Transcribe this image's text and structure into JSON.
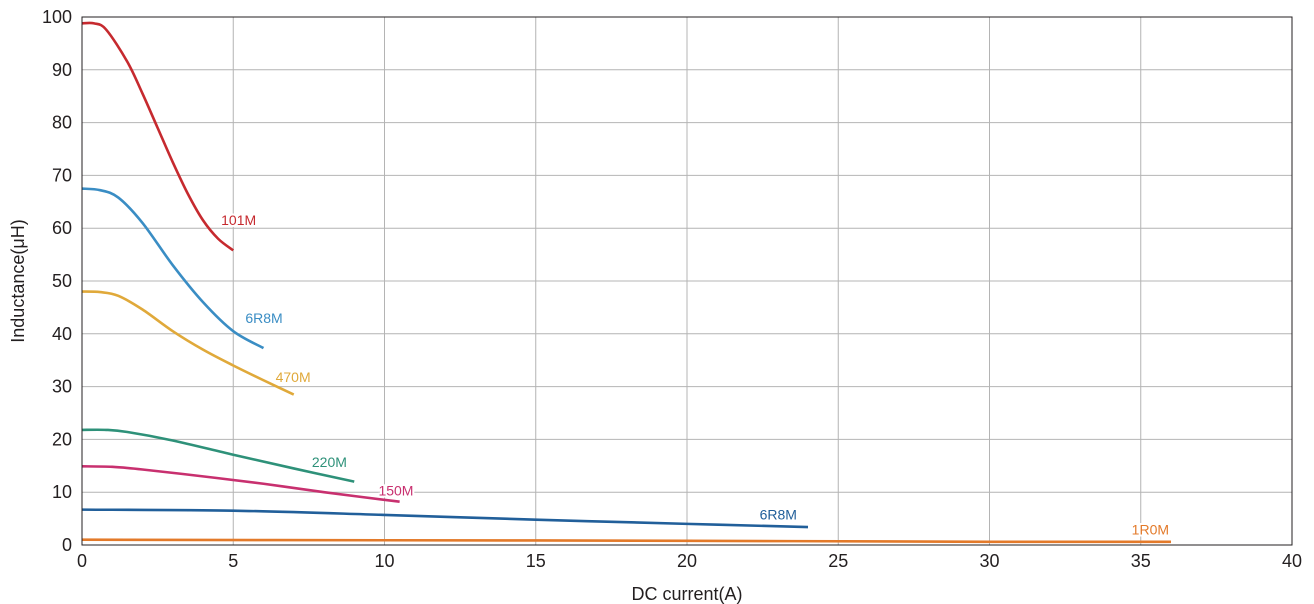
{
  "chart_data": {
    "type": "line",
    "xlabel": "DC current(A)",
    "ylabel": "Inductance(μH)",
    "xlim": [
      0,
      40
    ],
    "ylim": [
      0,
      100
    ],
    "x_ticks": [
      0,
      5,
      10,
      15,
      20,
      25,
      30,
      35,
      40
    ],
    "y_ticks": [
      0,
      10,
      20,
      30,
      40,
      50,
      60,
      70,
      80,
      90,
      100
    ],
    "grid": true,
    "legend": "inline labels",
    "series": [
      {
        "name": "101M",
        "color": "#c62a2f",
        "points": [
          [
            0,
            98.8
          ],
          [
            0.4,
            98.8
          ],
          [
            0.8,
            97.6
          ],
          [
            1.5,
            91.5
          ],
          [
            2,
            85.5
          ],
          [
            2.5,
            79
          ],
          [
            3,
            72.5
          ],
          [
            3.5,
            66.5
          ],
          [
            4,
            61.5
          ],
          [
            4.5,
            58
          ],
          [
            5,
            55.8
          ]
        ]
      },
      {
        "name": "6R8M",
        "color": "#3a8dc4",
        "points": [
          [
            0,
            67.5
          ],
          [
            0.6,
            67.2
          ],
          [
            1.2,
            65.8
          ],
          [
            2,
            61
          ],
          [
            3,
            53
          ],
          [
            4,
            46
          ],
          [
            5,
            40.5
          ],
          [
            6,
            37.3
          ]
        ]
      },
      {
        "name": "470M",
        "color": "#e0a93a",
        "points": [
          [
            0,
            48
          ],
          [
            0.6,
            47.9
          ],
          [
            1.2,
            47.2
          ],
          [
            2,
            44.6
          ],
          [
            3,
            40.5
          ],
          [
            4,
            37
          ],
          [
            5,
            34
          ],
          [
            6,
            31.2
          ],
          [
            7,
            28.5
          ]
        ]
      },
      {
        "name": "220M",
        "color": "#2e9179",
        "points": [
          [
            0,
            21.8
          ],
          [
            0.8,
            21.8
          ],
          [
            1.5,
            21.4
          ],
          [
            3,
            19.8
          ],
          [
            5,
            17.1
          ],
          [
            7,
            14.5
          ],
          [
            9,
            12
          ]
        ]
      },
      {
        "name": "150M",
        "color": "#c8306f",
        "points": [
          [
            0,
            14.9
          ],
          [
            1,
            14.8
          ],
          [
            2,
            14.3
          ],
          [
            4,
            13
          ],
          [
            6,
            11.6
          ],
          [
            8,
            10
          ],
          [
            10.5,
            8.2
          ]
        ]
      },
      {
        "name": "6R8M",
        "color": "#215f9a",
        "points": [
          [
            0,
            6.7
          ],
          [
            5,
            6.5
          ],
          [
            10,
            5.7
          ],
          [
            15,
            4.8
          ],
          [
            20,
            4
          ],
          [
            24,
            3.4
          ]
        ]
      },
      {
        "name": "1R0M",
        "color": "#e37a2a",
        "points": [
          [
            0,
            1
          ],
          [
            10,
            0.9
          ],
          [
            20,
            0.8
          ],
          [
            30,
            0.6
          ],
          [
            36,
            0.6
          ]
        ]
      }
    ],
    "series_labels": [
      {
        "text": "101M",
        "series": 0,
        "at": [
          4.6,
          61.6
        ]
      },
      {
        "text": "6R8M",
        "series": 1,
        "at": [
          5.4,
          43
        ]
      },
      {
        "text": "470M",
        "series": 2,
        "at": [
          6.4,
          31.8
        ]
      },
      {
        "text": "220M",
        "series": 3,
        "at": [
          7.6,
          15.7
        ]
      },
      {
        "text": "150M",
        "series": 4,
        "at": [
          9.8,
          10.3
        ]
      },
      {
        "text": "6R8M",
        "series": 5,
        "at": [
          22.4,
          5.8
        ]
      },
      {
        "text": "1R0M",
        "series": 6,
        "at": [
          34.7,
          2.9
        ]
      }
    ]
  }
}
